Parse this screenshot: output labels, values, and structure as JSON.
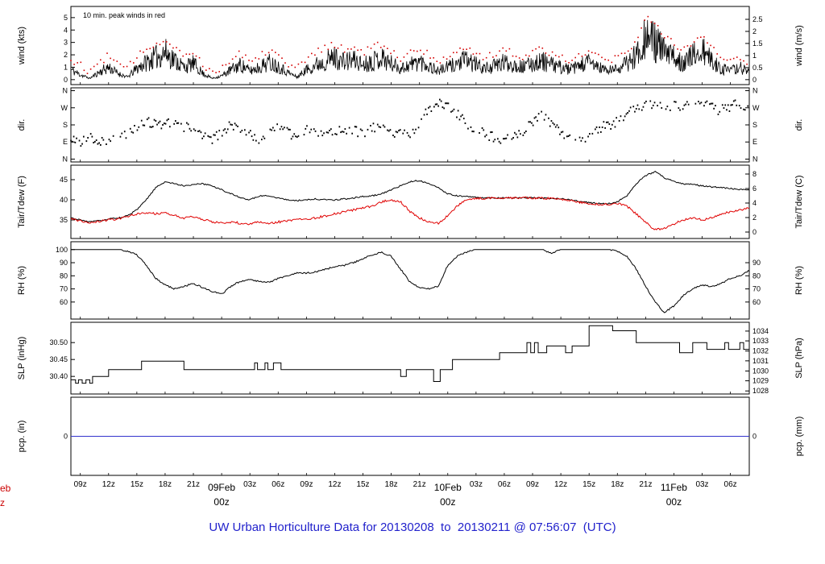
{
  "figure": {
    "title": "UW Urban Horticulture Data for 20130208  to  20130211 @ 07:56:07  (UTC)",
    "title_color": "#2222cc",
    "annotation": "10 min. peak winds in red",
    "annotation_color": "#cc0000",
    "background": "#ffffff"
  },
  "x_axis": {
    "t_start": 0,
    "t_end": 72,
    "unit": "hours, 3-hourly ticks, 2013-02-08 to 2013-02-11 UTC",
    "tick_color": "#000000",
    "date_color": "#cc0000",
    "ticks": [
      [
        1,
        "09z"
      ],
      [
        4,
        "12z"
      ],
      [
        7,
        "15z"
      ],
      [
        10,
        "18z"
      ],
      [
        13,
        "21z"
      ],
      [
        19,
        "03z"
      ],
      [
        22,
        "06z"
      ],
      [
        25,
        "09z"
      ],
      [
        28,
        "12z"
      ],
      [
        31,
        "15z"
      ],
      [
        34,
        "18z"
      ],
      [
        37,
        "21z"
      ],
      [
        43,
        "03z"
      ],
      [
        46,
        "06z"
      ],
      [
        49,
        "09z"
      ],
      [
        52,
        "12z"
      ],
      [
        55,
        "15z"
      ],
      [
        58,
        "18z"
      ],
      [
        61,
        "21z"
      ],
      [
        67,
        "03z"
      ],
      [
        70,
        "06z"
      ]
    ],
    "date_ticks": [
      [
        16,
        "09Feb",
        "00z"
      ],
      [
        40,
        "10Feb",
        "00z"
      ],
      [
        64,
        "11Feb",
        "00z"
      ]
    ],
    "clipped_left_label": [
      "eb",
      "z"
    ]
  },
  "chart_data": [
    {
      "name": "wind",
      "type": "line",
      "ylabel_left": "wind (kts)",
      "ylabel_right": "wind (m/s)",
      "ylim": [
        -0.4,
        5.9
      ],
      "yticks_left": [
        [
          0,
          "0"
        ],
        [
          1,
          "1"
        ],
        [
          2,
          "2"
        ],
        [
          3,
          "3"
        ],
        [
          4,
          "4"
        ],
        [
          5,
          "5"
        ]
      ],
      "yticks_right": [
        [
          0,
          "0"
        ],
        [
          0.972,
          "0.5"
        ],
        [
          1.944,
          "1"
        ],
        [
          2.917,
          "1.5"
        ],
        [
          3.889,
          "2"
        ],
        [
          4.861,
          "2.5"
        ]
      ],
      "series": [
        {
          "name": "wind-10min-avg",
          "color": "#000000",
          "style": "noisy",
          "noise_seed": 11,
          "t0": 0,
          "dt": 1,
          "values": [
            0.8,
            0.4,
            0.1,
            0.6,
            1.0,
            0.5,
            0.2,
            0.9,
            1.4,
            1.8,
            2.2,
            1.6,
            1.0,
            1.3,
            0.5,
            0.1,
            0.3,
            0.8,
            1.2,
            0.7,
            1.0,
            1.4,
            1.1,
            0.6,
            0.2,
            0.8,
            1.2,
            1.5,
            1.8,
            1.4,
            1.6,
            1.2,
            1.5,
            1.8,
            1.3,
            0.9,
            1.2,
            1.5,
            1.1,
            0.7,
            1.0,
            1.3,
            1.6,
            1.2,
            0.9,
            1.1,
            1.4,
            1.2,
            1.0,
            1.3,
            1.5,
            1.2,
            1.0,
            0.8,
            1.1,
            1.4,
            1.0,
            0.7,
            0.9,
            1.3,
            2.0,
            3.6,
            3.0,
            2.2,
            1.8,
            1.4,
            1.9,
            2.3,
            1.5,
            0.9,
            0.7,
            1.0,
            0.6
          ]
        },
        {
          "name": "wind-10min-peak",
          "color": "#d40000",
          "style": "dots",
          "noise_seed": 12,
          "t0": 0,
          "dt": 1,
          "values": [
            1.6,
            1.1,
            0.6,
            1.3,
            1.9,
            1.2,
            0.8,
            1.8,
            2.4,
            2.9,
            3.2,
            2.6,
            1.9,
            2.2,
            1.2,
            0.6,
            0.9,
            1.6,
            2.1,
            1.5,
            1.9,
            2.4,
            2.0,
            1.3,
            0.8,
            1.6,
            2.1,
            2.5,
            2.8,
            2.3,
            2.6,
            2.1,
            2.5,
            2.8,
            2.2,
            1.7,
            2.1,
            2.5,
            2.0,
            1.4,
            1.8,
            2.2,
            2.6,
            2.1,
            1.7,
            2.0,
            2.3,
            2.1,
            1.8,
            2.2,
            2.5,
            2.1,
            1.8,
            1.5,
            2.0,
            2.3,
            1.8,
            1.4,
            1.7,
            2.2,
            3.2,
            5.0,
            4.3,
            3.4,
            2.9,
            2.4,
            3.0,
            3.4,
            2.5,
            1.7,
            1.4,
            1.8,
            1.2
          ]
        }
      ]
    },
    {
      "name": "direction",
      "type": "scatter",
      "ylabel_left": "dir.",
      "ylabel_right": "dir.",
      "ylim": [
        -15,
        375
      ],
      "yticks_left": [
        [
          0,
          "N"
        ],
        [
          90,
          "E"
        ],
        [
          180,
          "S"
        ],
        [
          270,
          "W"
        ],
        [
          360,
          "N"
        ]
      ],
      "yticks_right": [
        [
          0,
          "N"
        ],
        [
          90,
          "E"
        ],
        [
          180,
          "S"
        ],
        [
          270,
          "W"
        ],
        [
          360,
          "N"
        ]
      ],
      "series": [
        {
          "name": "wind-direction-deg",
          "color": "#000000",
          "style": "scatter",
          "noise_seed": 21,
          "t0": 0,
          "dt": 1,
          "jitter": 55,
          "values": [
            100,
            90,
            120,
            80,
            110,
            95,
            130,
            170,
            190,
            200,
            180,
            210,
            170,
            150,
            120,
            100,
            140,
            180,
            160,
            130,
            110,
            150,
            170,
            140,
            120,
            160,
            150,
            140,
            150,
            160,
            150,
            140,
            160,
            170,
            150,
            130,
            120,
            200,
            260,
            300,
            280,
            240,
            180,
            150,
            130,
            110,
            90,
            120,
            150,
            200,
            230,
            180,
            140,
            120,
            100,
            130,
            160,
            180,
            200,
            240,
            270,
            280,
            285,
            280,
            275,
            270,
            280,
            285,
            270,
            260,
            280,
            285,
            275
          ]
        }
      ]
    },
    {
      "name": "temperature",
      "type": "line",
      "ylabel_left": "Tair/Tdew (F)",
      "ylabel_right": "Tair/Tdew (C)",
      "ylim": [
        30.4,
        48.6
      ],
      "yticks_left": [
        [
          35,
          "35"
        ],
        [
          40,
          "40"
        ],
        [
          45,
          "45"
        ]
      ],
      "yticks_right": [
        [
          32,
          "0"
        ],
        [
          35.6,
          "2"
        ],
        [
          39.2,
          "4"
        ],
        [
          42.8,
          "6"
        ],
        [
          46.4,
          "8"
        ]
      ],
      "series": [
        {
          "name": "tair-F",
          "color": "#000000",
          "style": "jline",
          "noise": 0.35,
          "noise_seed": 31,
          "t0": 0,
          "dt": 1,
          "values": [
            35.5,
            35.0,
            34.5,
            34.8,
            35.2,
            35.5,
            36.0,
            37.5,
            40.0,
            43.0,
            44.5,
            44.0,
            43.5,
            43.8,
            44.0,
            43.5,
            42.5,
            41.5,
            40.5,
            40.0,
            41.0,
            41.0,
            40.5,
            40.0,
            39.8,
            40.0,
            40.2,
            40.0,
            40.0,
            40.2,
            40.5,
            40.8,
            41.0,
            41.5,
            42.5,
            43.5,
            44.5,
            44.8,
            44.0,
            43.0,
            41.5,
            41.0,
            40.8,
            40.6,
            40.5,
            40.5,
            40.5,
            40.5,
            40.5,
            40.5,
            40.4,
            40.4,
            40.3,
            40.0,
            39.6,
            39.3,
            39.1,
            39.0,
            39.5,
            41.0,
            44.0,
            46.0,
            47.0,
            45.5,
            44.5,
            44.0,
            43.8,
            43.5,
            43.2,
            43.0,
            42.8,
            42.6,
            42.5
          ]
        },
        {
          "name": "tdew-F",
          "color": "#e00000",
          "style": "jline",
          "noise": 0.55,
          "noise_seed": 32,
          "t0": 0,
          "dt": 1,
          "values": [
            35.3,
            34.8,
            34.3,
            34.6,
            35.0,
            35.3,
            35.8,
            36.5,
            36.8,
            36.5,
            36.8,
            36.2,
            35.5,
            35.8,
            35.2,
            34.5,
            34.2,
            34.5,
            34.2,
            34.0,
            34.5,
            34.2,
            34.5,
            34.8,
            35.0,
            35.2,
            35.5,
            36.0,
            36.5,
            37.0,
            37.5,
            38.0,
            38.5,
            39.5,
            40.0,
            39.5,
            37.0,
            35.5,
            34.5,
            34.2,
            36.0,
            38.5,
            40.0,
            40.3,
            40.4,
            40.4,
            40.5,
            40.5,
            40.5,
            40.4,
            40.4,
            40.3,
            40.2,
            39.8,
            39.4,
            39.1,
            38.9,
            38.9,
            39.2,
            38.5,
            36.5,
            34.5,
            32.5,
            33.0,
            34.0,
            35.0,
            35.5,
            35.0,
            35.5,
            36.5,
            37.0,
            37.5,
            38.0
          ]
        }
      ]
    },
    {
      "name": "humidity",
      "type": "line",
      "ylabel_left": "RH (%)",
      "ylabel_right": "RH (%)",
      "ylim": [
        47,
        106
      ],
      "yticks_left": [
        [
          60,
          "60"
        ],
        [
          70,
          "70"
        ],
        [
          80,
          "80"
        ],
        [
          90,
          "90"
        ],
        [
          100,
          "100"
        ]
      ],
      "yticks_right": [
        [
          60,
          "60"
        ],
        [
          70,
          "70"
        ],
        [
          80,
          "80"
        ],
        [
          90,
          "90"
        ]
      ],
      "series": [
        {
          "name": "rh-percent",
          "color": "#000000",
          "style": "jline",
          "noise": 1.2,
          "clamp_max": 100,
          "noise_seed": 41,
          "t0": 0,
          "dt": 1,
          "values": [
            100,
            100,
            100,
            100,
            100,
            100,
            99,
            96,
            88,
            78,
            73,
            70,
            72,
            74,
            71,
            68,
            66,
            72,
            76,
            77,
            76,
            75,
            78,
            80,
            82,
            82,
            83,
            85,
            87,
            88,
            90,
            93,
            96,
            98,
            95,
            85,
            75,
            71,
            70,
            72,
            88,
            95,
            98,
            100,
            100,
            100,
            100,
            100,
            100,
            100,
            100,
            97,
            100,
            100,
            100,
            100,
            100,
            100,
            99,
            95,
            85,
            72,
            60,
            52,
            57,
            65,
            70,
            73,
            72,
            74,
            78,
            80,
            84
          ]
        }
      ]
    },
    {
      "name": "pressure",
      "type": "line",
      "ylabel_left": "SLP (inHg)",
      "ylabel_right": "SLP (hPa)",
      "ylim": [
        30.348,
        30.56
      ],
      "yticks_left": [
        [
          30.4,
          "30.40"
        ],
        [
          30.45,
          "30.45"
        ],
        [
          30.5,
          "30.50"
        ]
      ],
      "yticks_right": [
        [
          30.357,
          "1028"
        ],
        [
          30.387,
          "1029"
        ],
        [
          30.416,
          "1030"
        ],
        [
          30.446,
          "1031"
        ],
        [
          30.475,
          "1032"
        ],
        [
          30.505,
          "1033"
        ],
        [
          30.534,
          "1034"
        ]
      ],
      "series": [
        {
          "name": "slp-inHg",
          "color": "#000000",
          "style": "steps",
          "points": [
            [
              0,
              30.39
            ],
            [
              0.5,
              30.38
            ],
            [
              0.8,
              30.39
            ],
            [
              1.2,
              30.38
            ],
            [
              1.6,
              30.39
            ],
            [
              2.0,
              30.38
            ],
            [
              2.3,
              30.4
            ],
            [
              4.0,
              30.42
            ],
            [
              7.5,
              30.445
            ],
            [
              12,
              30.42
            ],
            [
              19.5,
              30.44
            ],
            [
              19.8,
              30.42
            ],
            [
              20.6,
              30.44
            ],
            [
              20.9,
              30.42
            ],
            [
              21.5,
              30.44
            ],
            [
              22.3,
              30.42
            ],
            [
              35,
              30.4
            ],
            [
              35.6,
              30.42
            ],
            [
              38.5,
              30.385
            ],
            [
              39.2,
              30.42
            ],
            [
              40.5,
              30.45
            ],
            [
              45.5,
              30.47
            ],
            [
              48.4,
              30.5
            ],
            [
              48.8,
              30.47
            ],
            [
              49.2,
              30.5
            ],
            [
              49.6,
              30.47
            ],
            [
              50.5,
              30.49
            ],
            [
              52.5,
              30.47
            ],
            [
              53.2,
              30.49
            ],
            [
              55,
              30.55
            ],
            [
              57.5,
              30.535
            ],
            [
              60,
              30.5
            ],
            [
              64.6,
              30.47
            ],
            [
              66,
              30.5
            ],
            [
              67.5,
              30.48
            ],
            [
              69.4,
              30.5
            ],
            [
              69.8,
              30.48
            ],
            [
              71,
              30.5
            ],
            [
              71.4,
              30.48
            ]
          ]
        }
      ]
    },
    {
      "name": "precipitation",
      "type": "line",
      "ylabel_left": "pcp. (in)",
      "ylabel_right": "pcp. (mm)",
      "ylim": [
        -1,
        1
      ],
      "yticks_left": [
        [
          0,
          "0"
        ]
      ],
      "yticks_right": [
        [
          0,
          "0"
        ]
      ],
      "series": [
        {
          "name": "precip-accum",
          "color": "#3333cc",
          "style": "line",
          "points": [
            [
              0,
              0
            ],
            [
              72,
              0
            ]
          ]
        }
      ]
    }
  ]
}
